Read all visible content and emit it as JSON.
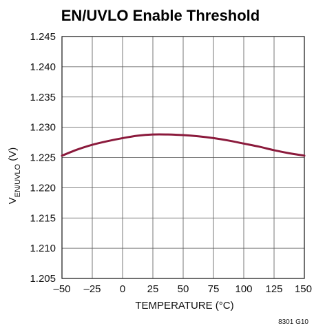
{
  "chart_data": {
    "type": "line",
    "title": "EN/UVLO Enable Threshold",
    "xlabel": "TEMPERATURE (°C)",
    "ylabel_main": "V",
    "ylabel_sub": "EN/UVLO",
    "ylabel_unit": " (V)",
    "xlim": [
      -50,
      150
    ],
    "ylim": [
      1.205,
      1.245
    ],
    "x_ticks": [
      -50,
      -25,
      0,
      25,
      50,
      75,
      100,
      125,
      150
    ],
    "x_tick_labels": [
      "–50",
      "–25",
      "0",
      "25",
      "50",
      "75",
      "100",
      "125",
      "150"
    ],
    "y_ticks": [
      1.205,
      1.21,
      1.215,
      1.22,
      1.225,
      1.23,
      1.235,
      1.24,
      1.245
    ],
    "y_tick_labels": [
      "1.205",
      "1.210",
      "1.215",
      "1.220",
      "1.225",
      "1.230",
      "1.235",
      "1.240",
      "1.245"
    ],
    "grid": true,
    "series": [
      {
        "color": "#8b1a3c",
        "x": [
          -50,
          -37.5,
          -25,
          -12.5,
          0,
          12.5,
          25,
          37.5,
          50,
          62.5,
          75,
          87.5,
          100,
          112.5,
          125,
          137.5,
          150
        ],
        "y": [
          1.2253,
          1.2263,
          1.2271,
          1.2277,
          1.2282,
          1.2286,
          1.2288,
          1.2288,
          1.2287,
          1.2285,
          1.2282,
          1.2278,
          1.2273,
          1.2268,
          1.2262,
          1.2257,
          1.2253
        ]
      }
    ]
  },
  "figure_id": "8301 G10"
}
